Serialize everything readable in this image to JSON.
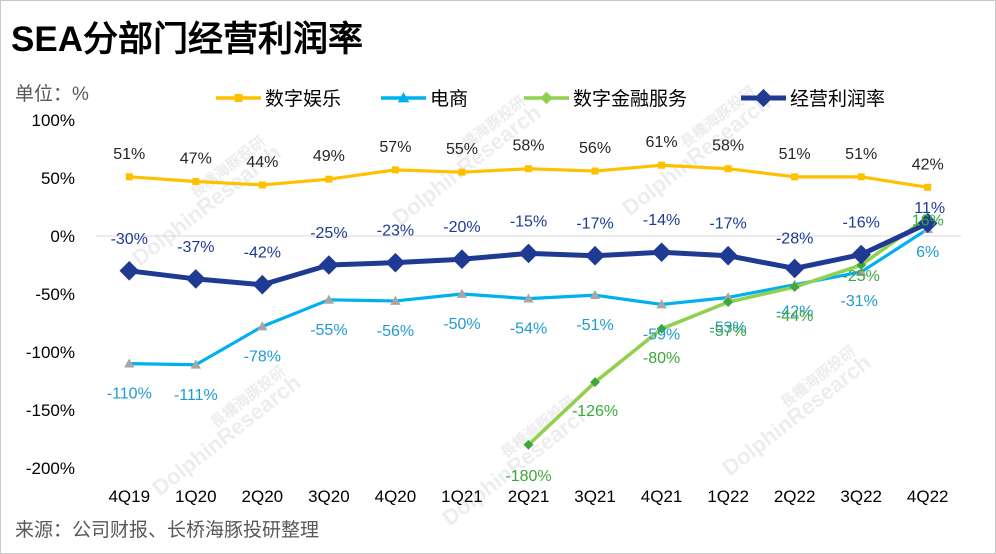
{
  "title": "SEA分部门经营利润率",
  "unit_label": "单位：%",
  "source": "来源：公司财报、长桥海豚投研整理",
  "watermark": {
    "brand_en": "DolphinResearch",
    "brand_cn": "長橋海豚投研",
    "brand_sub": "LONGBRIDGE"
  },
  "chart_data": {
    "type": "line",
    "categories": [
      "4Q19",
      "1Q20",
      "2Q20",
      "3Q20",
      "4Q20",
      "1Q21",
      "2Q21",
      "3Q21",
      "4Q21",
      "1Q22",
      "2Q22",
      "3Q22",
      "4Q22"
    ],
    "ylim": [
      -200,
      100
    ],
    "yticks": [
      100,
      50,
      0,
      -50,
      -100,
      -150,
      -200
    ],
    "ytick_labels": [
      "100%",
      "50%",
      "0%",
      "-50%",
      "-100%",
      "-150%",
      "-200%"
    ],
    "legend_position": "top",
    "grid": false,
    "series": [
      {
        "name": "数字娱乐",
        "color": "#ffc000",
        "marker": "square",
        "label_color": "#262626",
        "values": [
          51,
          47,
          44,
          49,
          57,
          55,
          58,
          56,
          61,
          58,
          51,
          51,
          42
        ],
        "labels": [
          "51%",
          "47%",
          "44%",
          "49%",
          "57%",
          "55%",
          "58%",
          "56%",
          "61%",
          "58%",
          "51%",
          "51%",
          "42%"
        ]
      },
      {
        "name": "电商",
        "color": "#00b0f0",
        "marker": "triangle",
        "label_color": "#1f9bd1",
        "values": [
          -110,
          -111,
          -78,
          -55,
          -56,
          -50,
          -54,
          -51,
          -59,
          -53,
          -42,
          -31,
          6
        ],
        "labels": [
          "-110%",
          "-111%",
          "-78%",
          "-55%",
          "-56%",
          "-50%",
          "-54%",
          "-51%",
          "-59%",
          "-53%",
          "-42%",
          "-31%",
          "6%"
        ]
      },
      {
        "name": "数字金融服务",
        "color": "#92d050",
        "marker": "diamond",
        "label_color": "#3aa83a",
        "values": [
          null,
          null,
          null,
          null,
          null,
          null,
          -180,
          -126,
          -80,
          -57,
          -44,
          -25,
          16
        ],
        "labels": [
          "",
          "",
          "",
          "",
          "",
          "",
          "-180%",
          "-126%",
          "-80%",
          "-57%",
          "-44%",
          "-25%",
          "16%"
        ]
      },
      {
        "name": "经营利润率",
        "color": "#1f3a93",
        "marker": "diamond",
        "label_color": "#1f3a93",
        "values": [
          -30,
          -37,
          -42,
          -25,
          -23,
          -20,
          -15,
          -17,
          -14,
          -17,
          -28,
          -16,
          11
        ],
        "labels": [
          "-30%",
          "-37%",
          "-42%",
          "-25%",
          "-23%",
          "-20%",
          "-15%",
          "-17%",
          "-14%",
          "-17%",
          "-28%",
          "-16%",
          "11%"
        ]
      }
    ]
  }
}
